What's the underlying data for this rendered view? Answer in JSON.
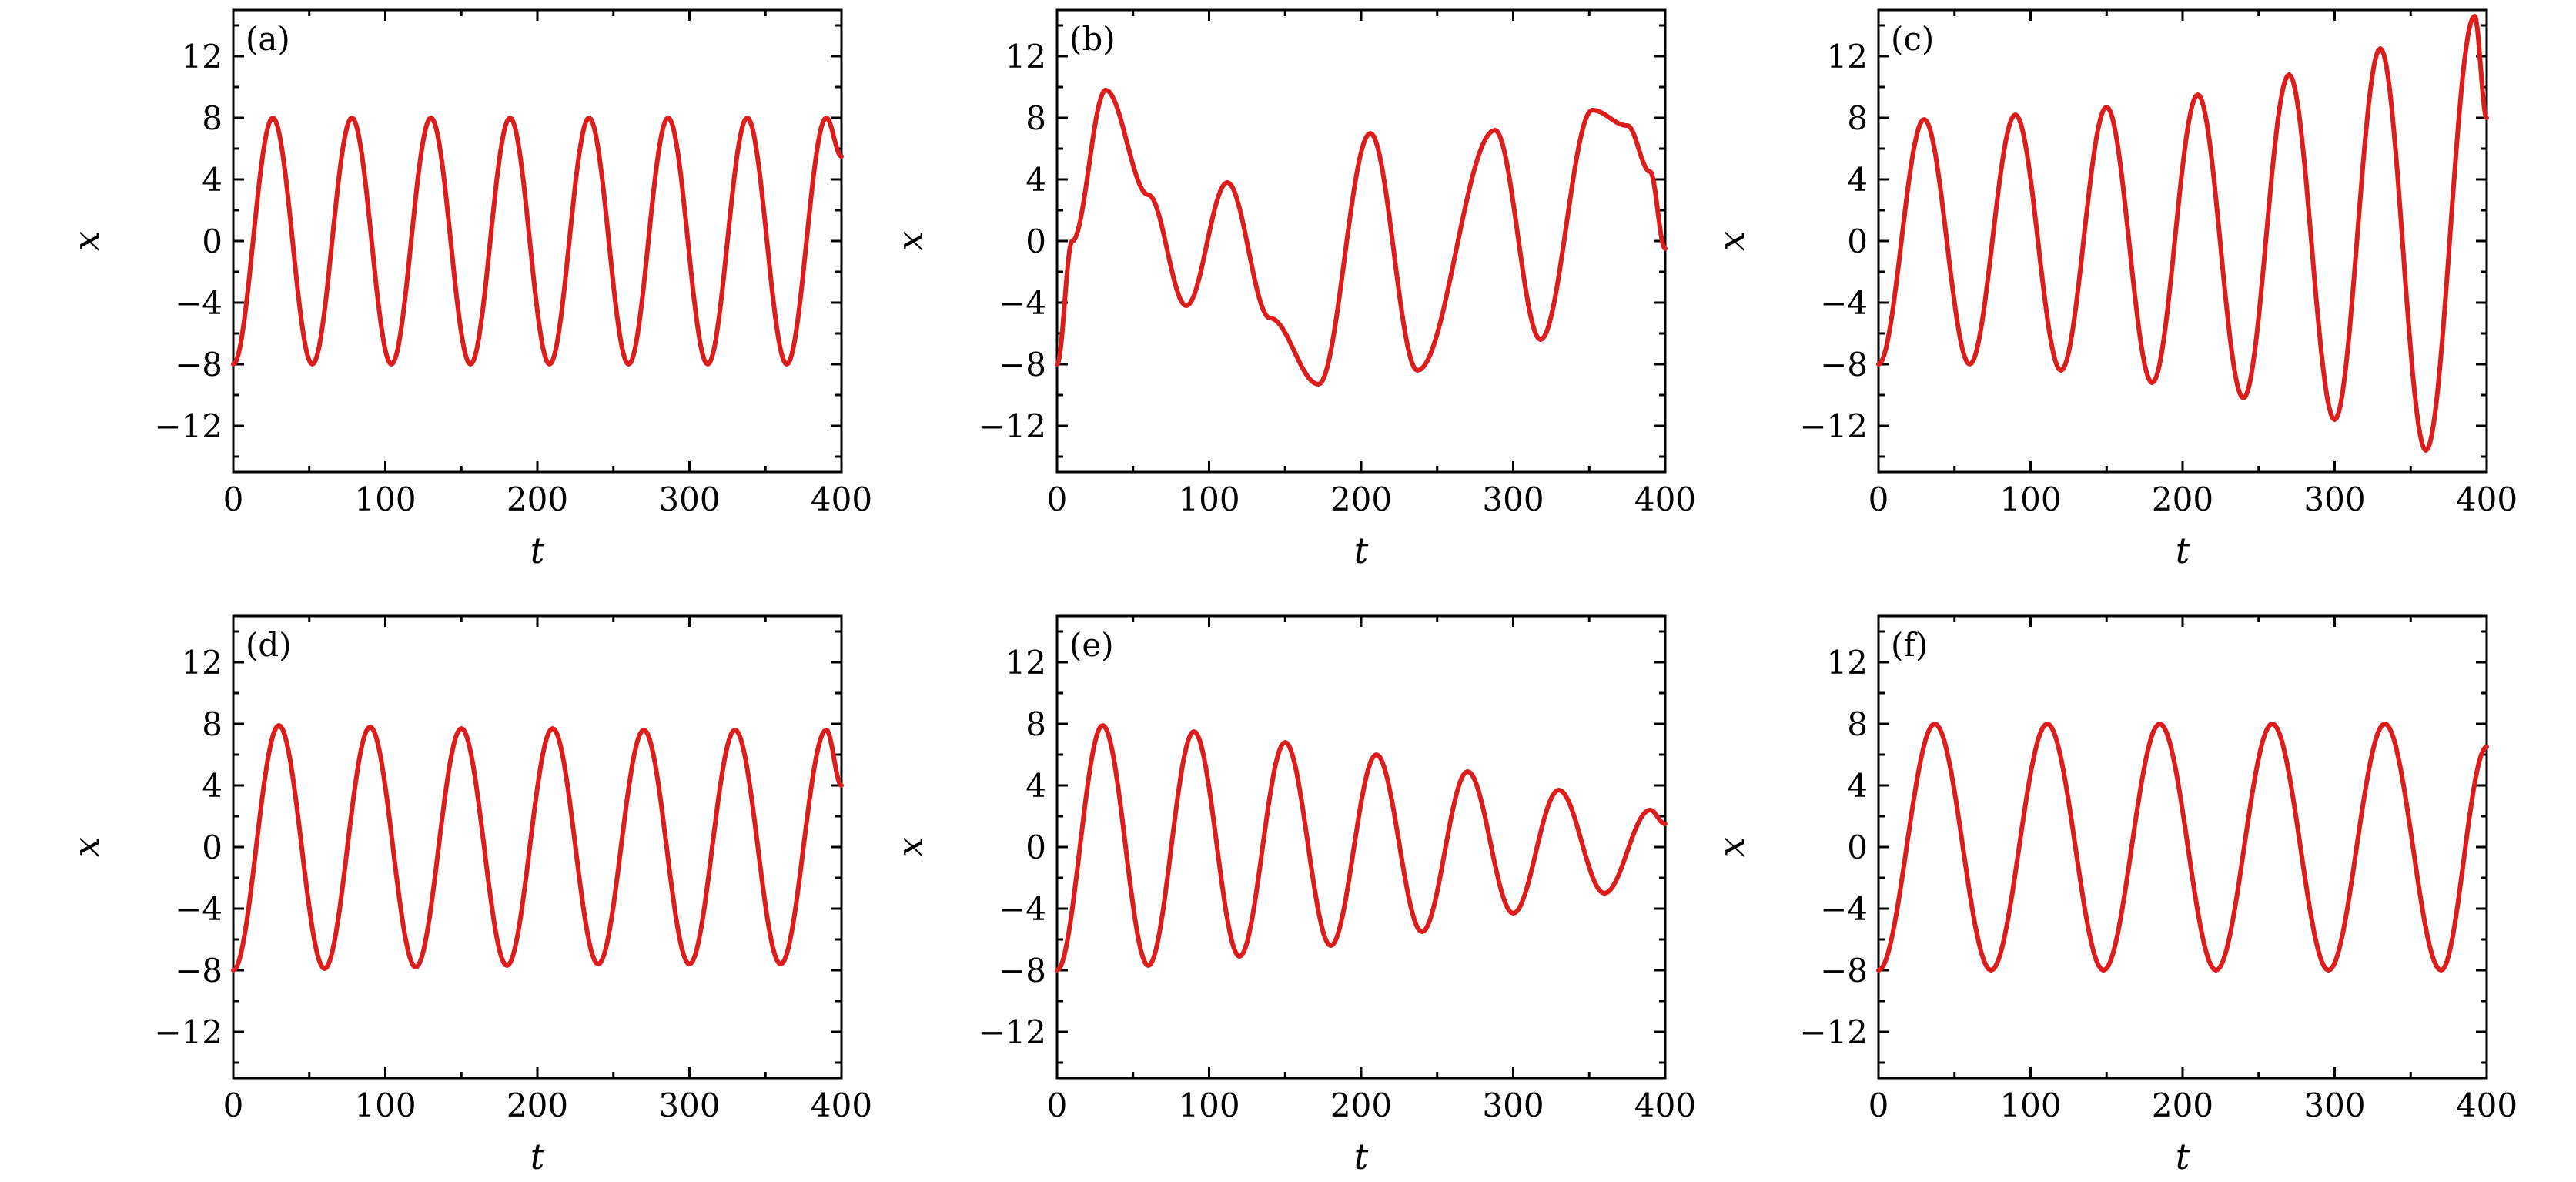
{
  "chart_data": [
    {
      "panel": "(a)",
      "type": "line",
      "xlabel": "t",
      "ylabel": "x",
      "xlim": [
        0,
        400
      ],
      "ylim": [
        -15,
        15
      ],
      "xticks": [
        0,
        100,
        200,
        300,
        400
      ],
      "yticks": [
        -12,
        -8,
        -4,
        0,
        4,
        8,
        12
      ],
      "grid": false,
      "series": [
        {
          "x": [
            0,
            26,
            52,
            78,
            104,
            130,
            156,
            182,
            208,
            234,
            260,
            286,
            312,
            338,
            364,
            390,
            400
          ],
          "y": [
            -8,
            8,
            -8,
            8,
            -8,
            8,
            -8,
            8,
            -8,
            8,
            -8,
            8,
            -8,
            8,
            -8,
            8,
            5.5
          ]
        }
      ]
    },
    {
      "panel": "(b)",
      "type": "line",
      "xlabel": "t",
      "ylabel": "x",
      "xlim": [
        0,
        400
      ],
      "ylim": [
        -15,
        15
      ],
      "xticks": [
        0,
        100,
        200,
        300,
        400
      ],
      "yticks": [
        -12,
        -8,
        -4,
        0,
        4,
        8,
        12
      ],
      "grid": false,
      "series": [
        {
          "x": [
            0,
            10,
            32,
            60,
            85,
            112,
            140,
            172,
            206,
            237,
            288,
            318,
            352,
            375,
            390,
            400
          ],
          "y": [
            -8,
            0,
            9.8,
            3,
            -4.2,
            3.8,
            -5,
            -9.3,
            7,
            -8.4,
            7.2,
            -6.4,
            8.5,
            7.5,
            4.5,
            -0.5
          ]
        }
      ]
    },
    {
      "panel": "(c)",
      "type": "line",
      "xlabel": "t",
      "ylabel": "x",
      "xlim": [
        0,
        400
      ],
      "ylim": [
        -15,
        15
      ],
      "xticks": [
        0,
        100,
        200,
        300,
        400
      ],
      "yticks": [
        -12,
        -8,
        -4,
        0,
        4,
        8,
        12
      ],
      "grid": false,
      "series": [
        {
          "x": [
            0,
            30,
            60,
            90,
            120,
            150,
            180,
            210,
            240,
            270,
            300,
            330,
            360,
            392,
            400
          ],
          "y": [
            -8,
            7.9,
            -8,
            8.2,
            -8.4,
            8.7,
            -9.2,
            9.5,
            -10.2,
            10.8,
            -11.6,
            12.5,
            -13.6,
            14.6,
            8
          ]
        }
      ]
    },
    {
      "panel": "(d)",
      "type": "line",
      "xlabel": "t",
      "ylabel": "x",
      "xlim": [
        0,
        400
      ],
      "ylim": [
        -15,
        15
      ],
      "xticks": [
        0,
        100,
        200,
        300,
        400
      ],
      "yticks": [
        -12,
        -8,
        -4,
        0,
        4,
        8,
        12
      ],
      "grid": false,
      "series": [
        {
          "x": [
            0,
            30,
            60,
            90,
            120,
            150,
            180,
            210,
            240,
            270,
            300,
            330,
            360,
            390,
            400
          ],
          "y": [
            -8,
            7.9,
            -7.9,
            7.8,
            -7.8,
            7.7,
            -7.7,
            7.7,
            -7.6,
            7.6,
            -7.6,
            7.6,
            -7.6,
            7.6,
            4
          ]
        }
      ]
    },
    {
      "panel": "(e)",
      "type": "line",
      "xlabel": "t",
      "ylabel": "x",
      "xlim": [
        0,
        400
      ],
      "ylim": [
        -15,
        15
      ],
      "xticks": [
        0,
        100,
        200,
        300,
        400
      ],
      "yticks": [
        -12,
        -8,
        -4,
        0,
        4,
        8,
        12
      ],
      "grid": false,
      "series": [
        {
          "x": [
            0,
            30,
            60,
            90,
            120,
            150,
            180,
            210,
            240,
            270,
            300,
            330,
            360,
            390,
            400
          ],
          "y": [
            -8,
            7.9,
            -7.7,
            7.5,
            -7.1,
            6.8,
            -6.4,
            6,
            -5.5,
            4.9,
            -4.3,
            3.7,
            -3,
            2.4,
            1.5
          ]
        }
      ]
    },
    {
      "panel": "(f)",
      "type": "line",
      "xlabel": "t",
      "ylabel": "x",
      "xlim": [
        0,
        400
      ],
      "ylim": [
        -15,
        15
      ],
      "xticks": [
        0,
        100,
        200,
        300,
        400
      ],
      "yticks": [
        -12,
        -8,
        -4,
        0,
        4,
        8,
        12
      ],
      "grid": false,
      "series": [
        {
          "x": [
            0,
            37,
            74,
            111,
            148,
            185,
            222,
            259,
            296,
            333,
            370,
            400
          ],
          "y": [
            -8,
            8,
            -8,
            8,
            -8,
            8,
            -8,
            8,
            -8,
            8,
            -8,
            6.5
          ]
        }
      ]
    }
  ],
  "colors": {
    "curve": "#dd1c1c",
    "axis": "#000000"
  }
}
